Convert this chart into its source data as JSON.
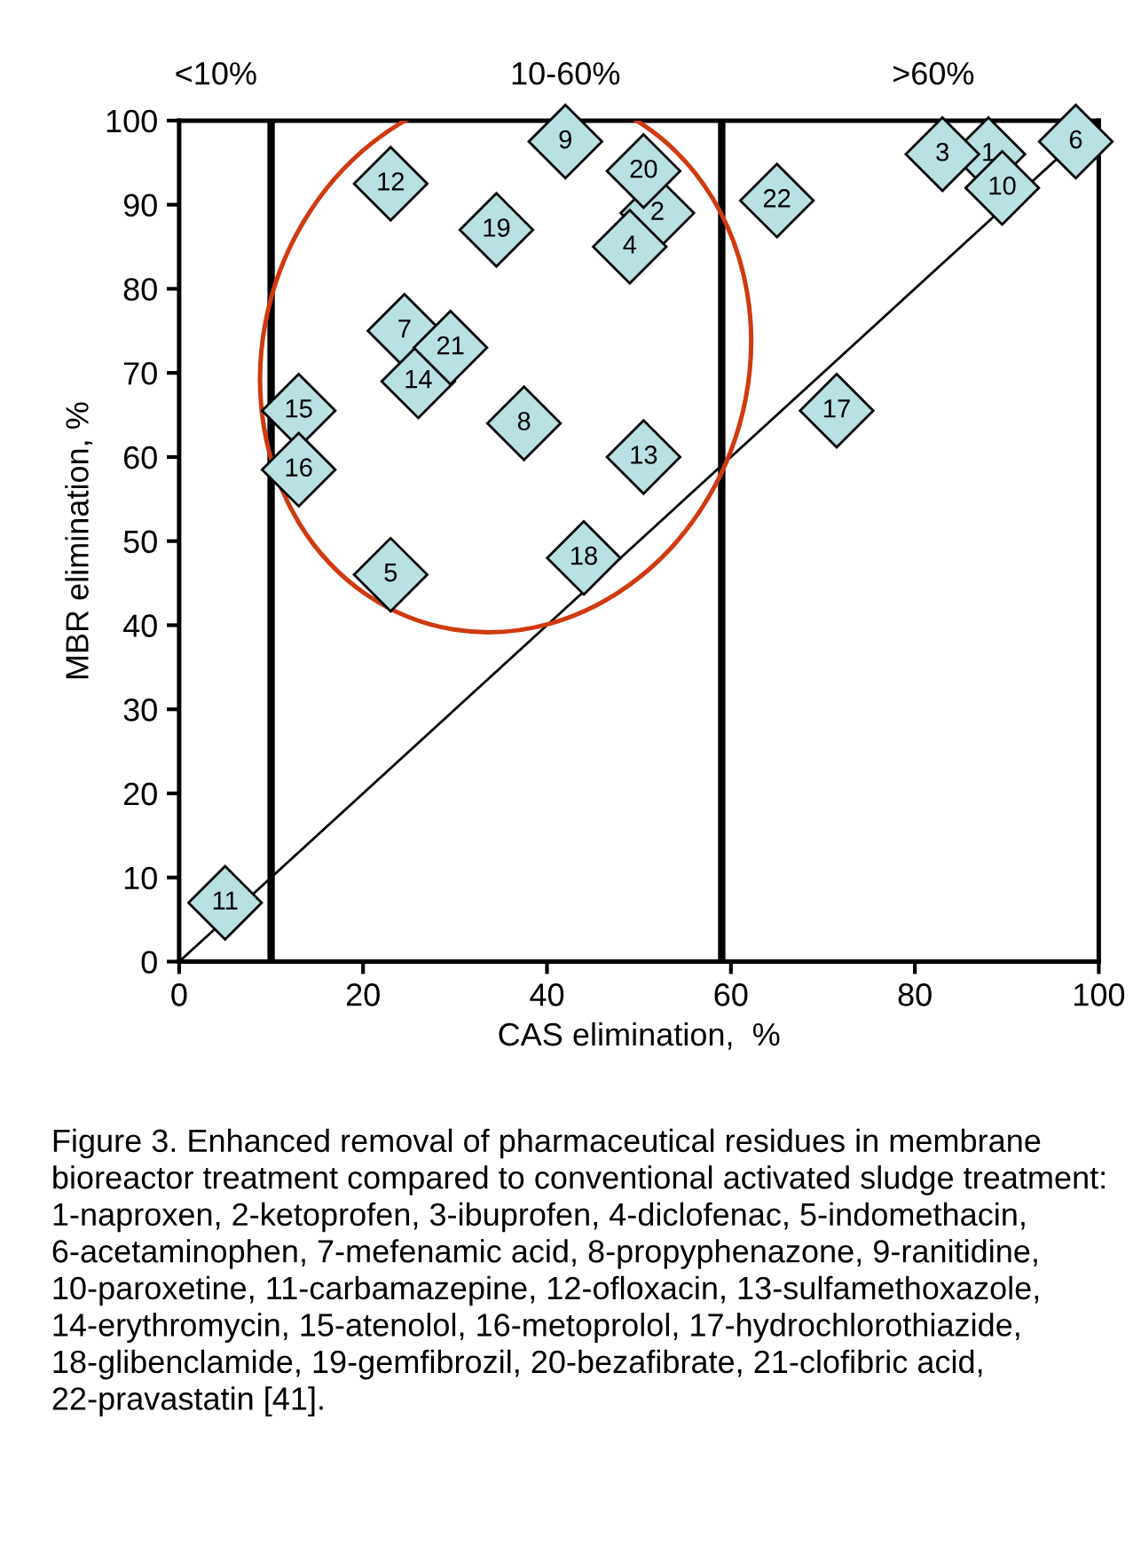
{
  "chart_data": {
    "type": "scatter",
    "xlabel": "CAS elimination,  %",
    "ylabel": "MBR elimination, %",
    "xlim": [
      0,
      100
    ],
    "ylim": [
      0,
      100
    ],
    "xticks": [
      0,
      20,
      40,
      60,
      80,
      100
    ],
    "yticks": [
      0,
      10,
      20,
      30,
      40,
      50,
      60,
      70,
      80,
      90,
      100
    ],
    "grid": false,
    "legend": false,
    "marker": "diamond",
    "ref_lines": [
      {
        "axis": "x",
        "value": 10,
        "color": "#000000"
      },
      {
        "axis": "x",
        "value": 59,
        "color": "#000000"
      }
    ],
    "series": [
      {
        "type": "line",
        "x": [
          0,
          100
        ],
        "values": [
          0,
          100
        ],
        "color": "#000000",
        "marker": "none",
        "line_style": "solid"
      },
      {
        "name": "1",
        "x": [
          88
        ],
        "values": [
          96
        ],
        "color": "#b9e0e3"
      },
      {
        "name": "2",
        "x": [
          52
        ],
        "values": [
          89
        ],
        "color": "#b9e0e3"
      },
      {
        "name": "3",
        "x": [
          83
        ],
        "values": [
          96
        ],
        "color": "#b9e0e3"
      },
      {
        "name": "4",
        "x": [
          49
        ],
        "values": [
          85
        ],
        "color": "#b9e0e3"
      },
      {
        "name": "5",
        "x": [
          23
        ],
        "values": [
          46
        ],
        "color": "#b9e0e3"
      },
      {
        "name": "6",
        "x": [
          97.5
        ],
        "values": [
          97.5
        ],
        "color": "#b9e0e3"
      },
      {
        "name": "7",
        "x": [
          24.5
        ],
        "values": [
          75
        ],
        "color": "#b9e0e3"
      },
      {
        "name": "8",
        "x": [
          37.5
        ],
        "values": [
          64
        ],
        "color": "#b9e0e3"
      },
      {
        "name": "9",
        "x": [
          42
        ],
        "values": [
          97.5
        ],
        "color": "#b9e0e3"
      },
      {
        "name": "10",
        "x": [
          89.5
        ],
        "values": [
          92
        ],
        "color": "#b9e0e3"
      },
      {
        "name": "11",
        "x": [
          5
        ],
        "values": [
          7
        ],
        "color": "#b9e0e3"
      },
      {
        "name": "12",
        "x": [
          23
        ],
        "values": [
          92.5
        ],
        "color": "#b9e0e3"
      },
      {
        "name": "13",
        "x": [
          50.5
        ],
        "values": [
          60
        ],
        "color": "#b9e0e3"
      },
      {
        "name": "14",
        "x": [
          26
        ],
        "values": [
          69
        ],
        "color": "#b9e0e3"
      },
      {
        "name": "15",
        "x": [
          13
        ],
        "values": [
          65.5
        ],
        "color": "#b9e0e3"
      },
      {
        "name": "16",
        "x": [
          13
        ],
        "values": [
          58.5
        ],
        "color": "#b9e0e3"
      },
      {
        "name": "17",
        "x": [
          71.5
        ],
        "values": [
          65.5
        ],
        "color": "#b9e0e3"
      },
      {
        "name": "18",
        "x": [
          44
        ],
        "values": [
          48
        ],
        "color": "#b9e0e3"
      },
      {
        "name": "19",
        "x": [
          34.5
        ],
        "values": [
          87
        ],
        "color": "#b9e0e3"
      },
      {
        "name": "20",
        "x": [
          50.5
        ],
        "values": [
          94
        ],
        "color": "#b9e0e3"
      },
      {
        "name": "21",
        "x": [
          29.5
        ],
        "values": [
          73
        ],
        "color": "#b9e0e3"
      },
      {
        "name": "22",
        "x": [
          65
        ],
        "values": [
          90.5
        ],
        "color": "#b9e0e3"
      }
    ],
    "annotations": [
      "<10%",
      "10-60%",
      ">60%",
      "Figure 3. Enhanced removal of pharmaceutical residues in membrane bioreactor treatment compared to conventional activated sludge treatment: 1-naproxen, 2-ketoprofen, 3-ibuprofen, 4-diclofenac, 5-indomethacin, 6-acetaminophen, 7-mefenamic acid, 8-propyphenazone, 9-ranitidine, 10-paroxetine, 11-carbamazepine, 12-ofloxacin, 13-sulfamethoxazole, 14-erythromycin, 15-atenolol, 16-metoprolol, 17-hydrochlorothiazide, 18-glibenclamide, 19-gemfibrozil, 20-bezafibrate, 21-clofibric acid, 22-pravastatin [41]."
    ]
  }
}
